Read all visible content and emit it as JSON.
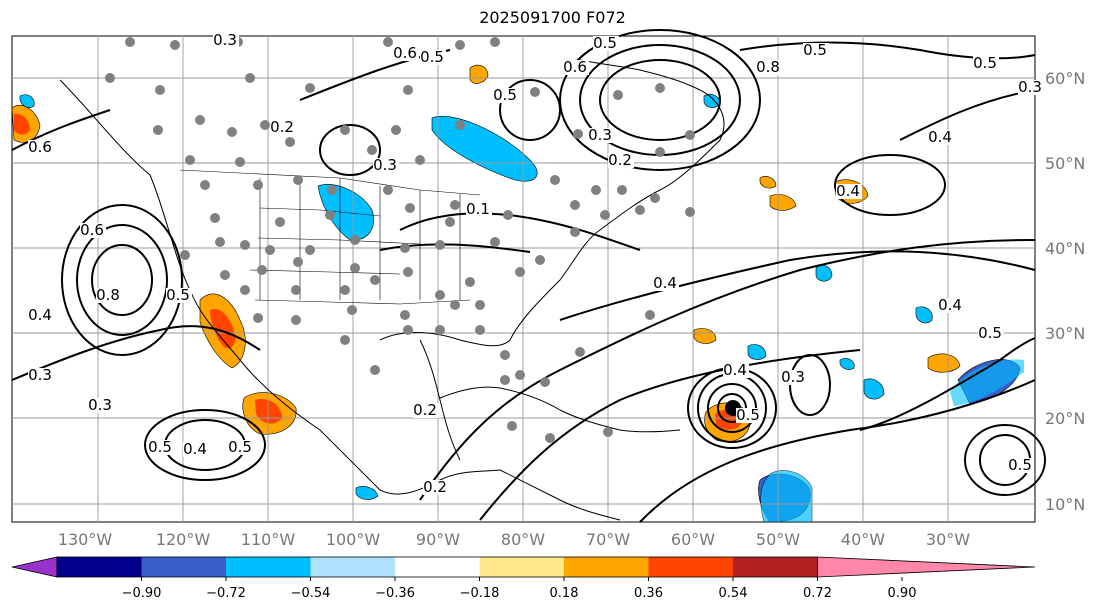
{
  "title": "2025091700 F072",
  "map": {
    "lon_labels": [
      "130°W",
      "120°W",
      "110°W",
      "100°W",
      "90°W",
      "80°W",
      "70°W",
      "60°W",
      "50°W",
      "40°W",
      "30°W"
    ],
    "lat_labels": [
      "60°N",
      "50°N",
      "40°N",
      "30°N",
      "20°N",
      "10°N"
    ],
    "contour_labels": [
      "0.3",
      "0.6",
      "0.5",
      "0.6",
      "0.5",
      "0.8",
      "0.5",
      "0.3",
      "0.5",
      "0.2",
      "0.4",
      "0.5",
      "0.6",
      "0.2",
      "0.3",
      "0.4",
      "0.4",
      "0.6",
      "0.8",
      "0.5",
      "0.4",
      "0.3",
      "0.3",
      "0.5",
      "0.4",
      "0.5",
      "0.2",
      "0.5",
      "0.3",
      "0.2",
      "0.3",
      "0.5",
      "0.4",
      "0.1",
      "0.4",
      "0.5"
    ],
    "colors": {
      "ocean_line": "#000000",
      "grid": "#999999",
      "station_dot": "#808080",
      "storm_center": "#000000"
    }
  },
  "colorbar": {
    "ticks": [
      "−0.90",
      "−0.72",
      "−0.54",
      "−0.36",
      "−0.18",
      "0.18",
      "0.36",
      "0.54",
      "0.72",
      "0.90"
    ],
    "colors": [
      "#9932cc",
      "#00008b",
      "#3a5fcd",
      "#00bfff",
      "#b0e2ff",
      "#ffffff",
      "#ffe88a",
      "#ffa500",
      "#ff4500",
      "#b22222",
      "#ff88aa"
    ]
  }
}
